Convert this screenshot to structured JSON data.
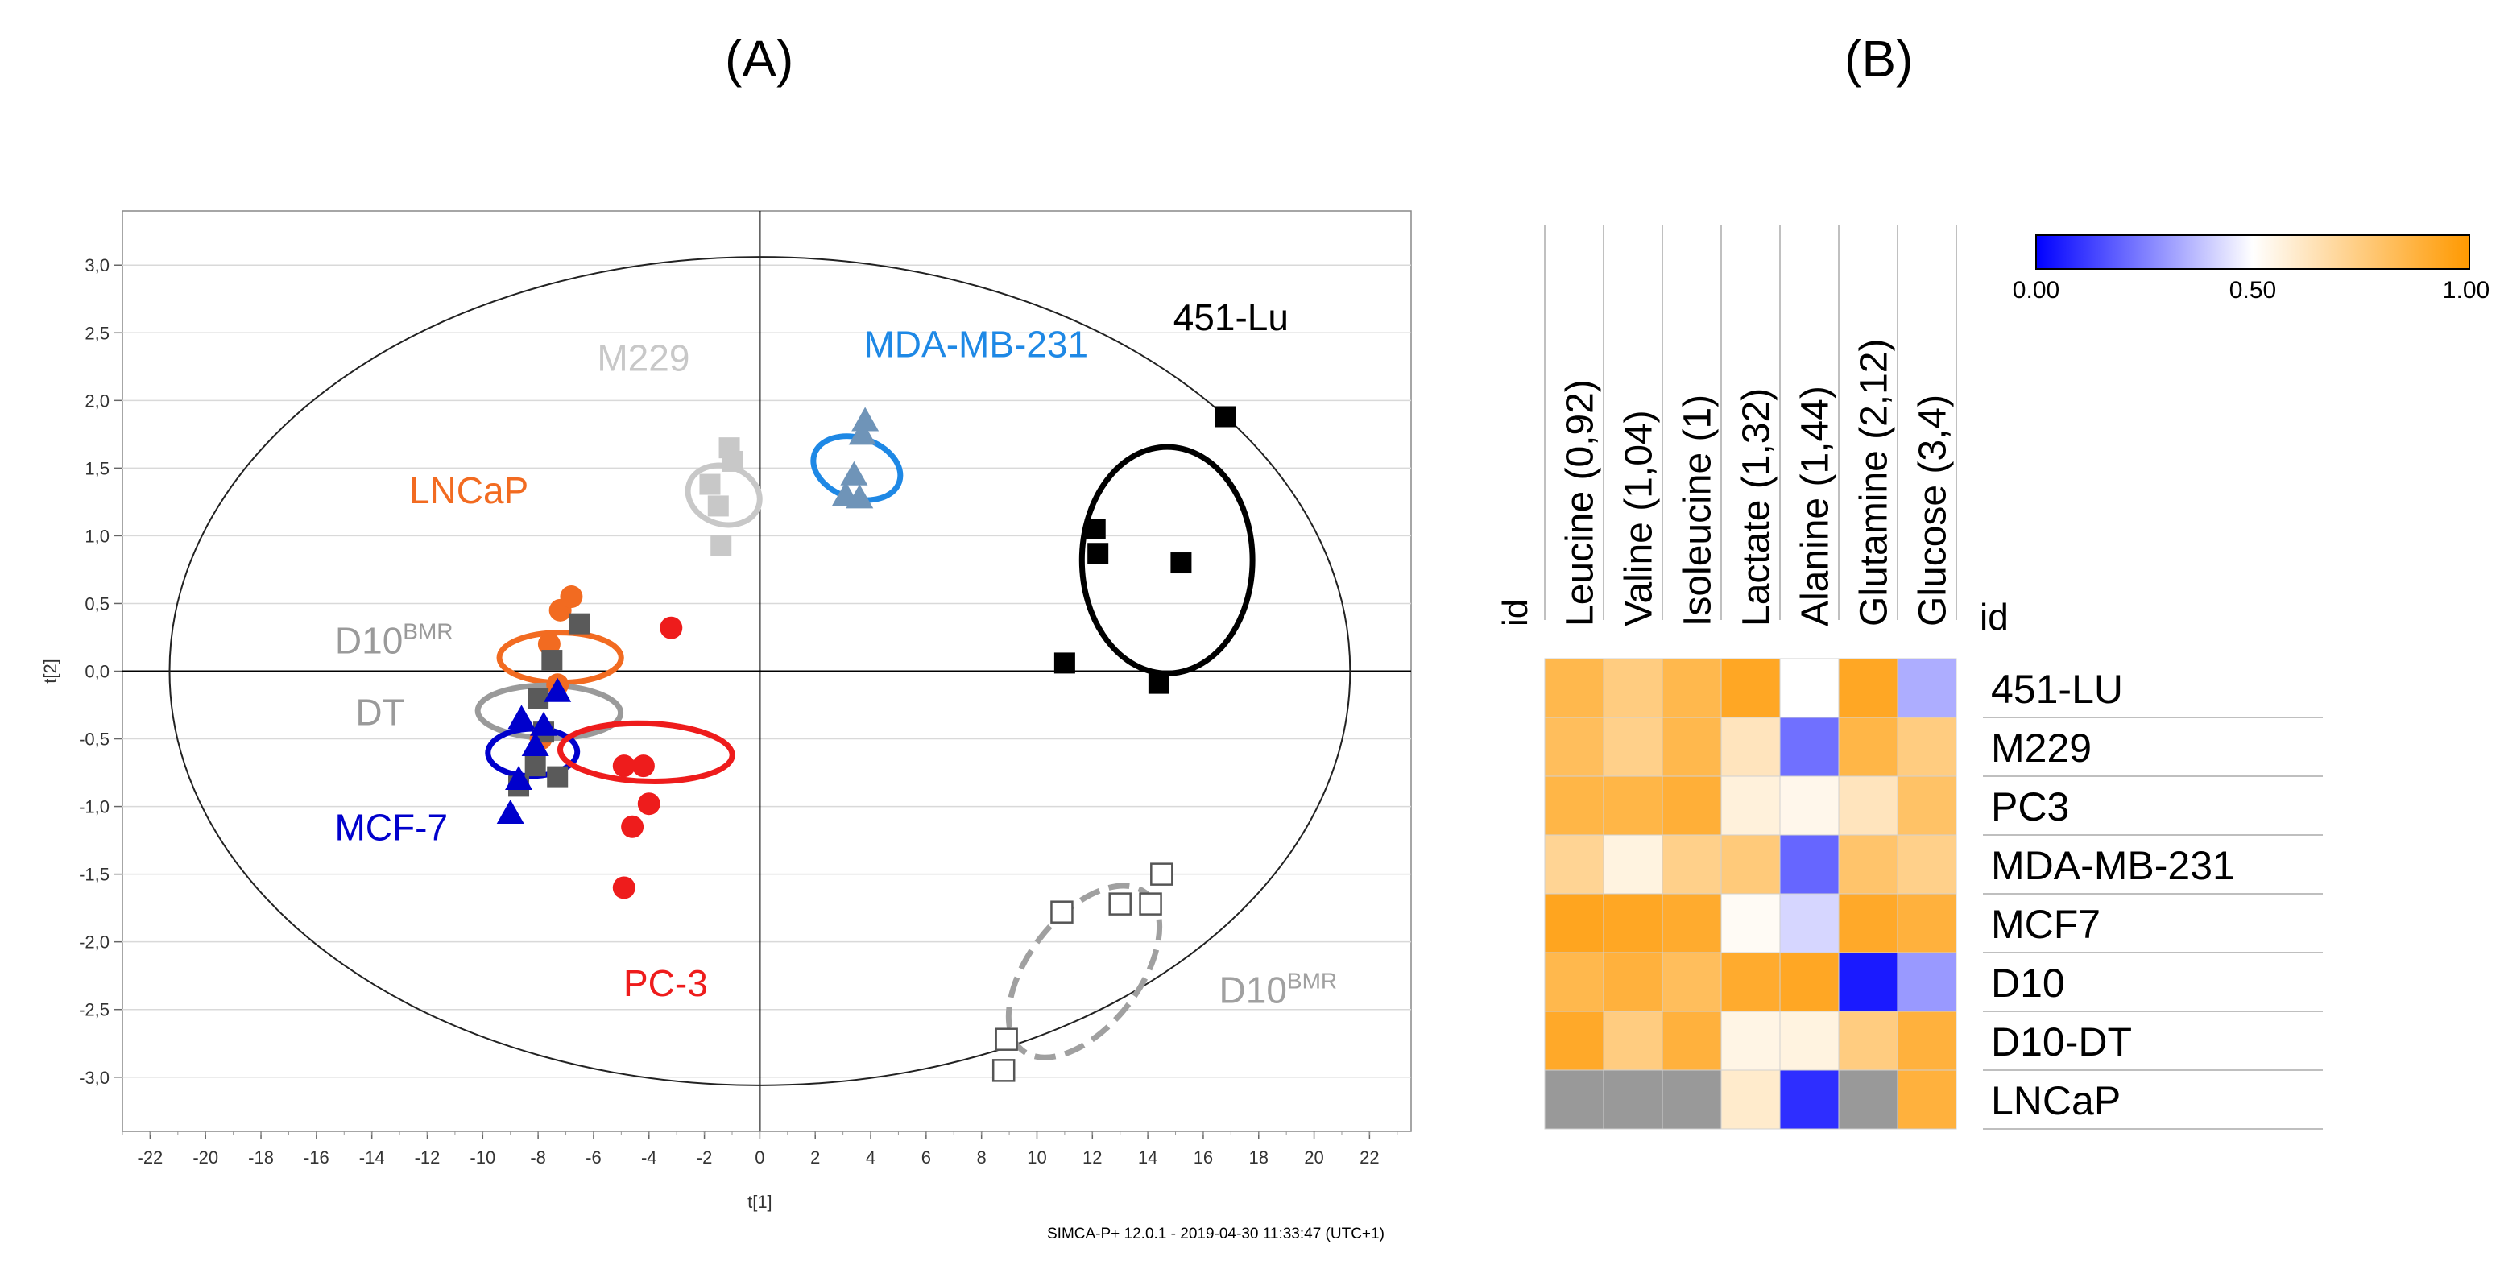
{
  "panel_labels": {
    "a": "(A)",
    "b": "(B)"
  },
  "footer": "SIMCA-P+ 12.0.1 - 2019-04-30 11:33:47 (UTC+1)",
  "colors": {
    "LNCaP": "#f26b21",
    "D10_DT": "#5a5a5a",
    "D10_DT_ellipse": "#9a9a9a",
    "MCF7": "#0000cc",
    "PC3": "#ee1c1c",
    "M229": "#c8c8c8",
    "MDA": "#6f94b8",
    "MDA_ellipse": "#1e88e5",
    "Lu451": "#000000",
    "D10_BMR": "#555555",
    "D10_BMR_ellipse": "#a0a0a0",
    "NA": "#999999"
  },
  "chart_data": [
    {
      "type": "scatter",
      "title": "",
      "xlabel": "t[1]",
      "ylabel": "t[2]",
      "xlim": [
        -23,
        23.5
      ],
      "ylim": [
        -3.4,
        3.4
      ],
      "xticks": [
        -22,
        -20,
        -18,
        -16,
        -14,
        -12,
        -10,
        -8,
        -6,
        -4,
        -2,
        0,
        2,
        4,
        6,
        8,
        10,
        12,
        14,
        16,
        18,
        20,
        22
      ],
      "yticks": [
        -3.0,
        -2.5,
        -2.0,
        -1.5,
        -1.0,
        -0.5,
        0.0,
        0.5,
        1.0,
        1.5,
        2.0,
        2.5,
        3.0
      ],
      "xtick_labels": [
        "-22",
        "-20",
        "-18",
        "-16",
        "-14",
        "-12",
        "-10",
        "-8",
        "-6",
        "-4",
        "-2",
        "0",
        "2",
        "4",
        "6",
        "8",
        "10",
        "12",
        "14",
        "16",
        "18",
        "20",
        "22"
      ],
      "ytick_labels": [
        "-3,0",
        "-2,5",
        "-2,0",
        "-1,5",
        "-1,0",
        "-0,5",
        "0,0",
        "0,5",
        "1,0",
        "1,5",
        "2,0",
        "2,5",
        "3,0"
      ],
      "grid": true,
      "hotelling_ellipse": {
        "cx": 0,
        "cy": 0,
        "rx": 21.3,
        "ry": 3.06
      },
      "series": [
        {
          "name": "LNCaP",
          "marker": "circle",
          "color": "LNCaP",
          "points": [
            [
              -7.2,
              0.45
            ],
            [
              -6.8,
              0.55
            ],
            [
              -7.6,
              0.2
            ],
            [
              -7.3,
              -0.1
            ],
            [
              -7.9,
              -0.5
            ]
          ]
        },
        {
          "name": "D10 BMR DT",
          "marker": "square",
          "color": "D10_DT",
          "points": [
            [
              -6.5,
              0.35
            ],
            [
              -7.5,
              0.08
            ],
            [
              -8.0,
              -0.2
            ],
            [
              -7.8,
              -0.45
            ],
            [
              -8.1,
              -0.7
            ],
            [
              -7.3,
              -0.78
            ],
            [
              -8.7,
              -0.85
            ]
          ]
        },
        {
          "name": "MCF-7",
          "marker": "triangle",
          "color": "MCF7",
          "points": [
            [
              -8.6,
              -0.35
            ],
            [
              -7.8,
              -0.4
            ],
            [
              -7.3,
              -0.15
            ],
            [
              -8.7,
              -0.8
            ],
            [
              -9.0,
              -1.05
            ],
            [
              -8.1,
              -0.55
            ]
          ]
        },
        {
          "name": "PC-3",
          "marker": "circle",
          "color": "PC3",
          "points": [
            [
              -3.2,
              0.32
            ],
            [
              -4.9,
              -0.7
            ],
            [
              -4.2,
              -0.7
            ],
            [
              -4.0,
              -0.98
            ],
            [
              -4.6,
              -1.15
            ],
            [
              -4.9,
              -1.6
            ]
          ]
        },
        {
          "name": "M229",
          "marker": "square",
          "color": "M229",
          "points": [
            [
              -1.1,
              1.65
            ],
            [
              -1.0,
              1.55
            ],
            [
              -1.8,
              1.38
            ],
            [
              -1.5,
              1.22
            ],
            [
              -1.4,
              0.93
            ]
          ]
        },
        {
          "name": "MDA-MB-231",
          "marker": "triangle",
          "color": "MDA",
          "points": [
            [
              3.8,
              1.85
            ],
            [
              3.7,
              1.75
            ],
            [
              3.4,
              1.45
            ],
            [
              3.1,
              1.3
            ],
            [
              3.6,
              1.28
            ]
          ]
        },
        {
          "name": "451-Lu",
          "marker": "square",
          "color": "Lu451",
          "points": [
            [
              16.8,
              1.88
            ],
            [
              12.1,
              1.05
            ],
            [
              12.2,
              0.87
            ],
            [
              15.2,
              0.8
            ],
            [
              11.0,
              0.06
            ],
            [
              14.4,
              -0.09
            ]
          ]
        },
        {
          "name": "D10 BMR",
          "marker": "open-square",
          "color": "D10_BMR",
          "points": [
            [
              14.5,
              -1.5
            ],
            [
              13.0,
              -1.72
            ],
            [
              14.1,
              -1.72
            ],
            [
              10.9,
              -1.78
            ],
            [
              8.9,
              -2.72
            ],
            [
              8.8,
              -2.95
            ]
          ]
        }
      ],
      "ellipses": [
        {
          "group": "LNCaP",
          "cx": -7.2,
          "cy": 0.1,
          "rx": 0.95,
          "ry": 0.75,
          "angle": -26,
          "stroke": "LNCaP",
          "dashed": false
        },
        {
          "group": "D10 BMR DT",
          "cx": -7.6,
          "cy": -0.3,
          "rx": 1.0,
          "ry": 0.88,
          "angle": -25,
          "stroke": "D10_DT_ellipse",
          "dashed": false
        },
        {
          "group": "MCF-7",
          "cx": -8.2,
          "cy": -0.6,
          "rx": 0.9,
          "ry": 0.55,
          "angle": -27,
          "stroke": "MCF7",
          "dashed": false
        },
        {
          "group": "PC-3",
          "cx": -4.1,
          "cy": -0.6,
          "rx": 1.1,
          "ry": 1.06,
          "angle": -24,
          "stroke": "PC3",
          "dashed": false
        },
        {
          "group": "M229",
          "cx": -1.3,
          "cy": 1.3,
          "rx": 1.1,
          "ry": 0.45,
          "angle": -8,
          "stroke": "M229",
          "dashed": false
        },
        {
          "group": "MDA-MB-231",
          "cx": 3.5,
          "cy": 1.5,
          "rx": 1.15,
          "ry": 0.55,
          "angle": -8,
          "stroke": "MDA_ellipse",
          "dashed": false
        },
        {
          "group": "451-Lu",
          "cx": 14.7,
          "cy": 0.82,
          "rx": 4.3,
          "ry": 1.05,
          "angle": -26,
          "stroke": "Lu451",
          "dashed": false
        },
        {
          "group": "D10 BMR",
          "cx": 11.7,
          "cy": -2.22,
          "rx": 3.8,
          "ry": 0.68,
          "angle": 12,
          "stroke": "D10_BMR_ellipse",
          "dashed": true
        }
      ],
      "annotations": [
        {
          "text": "M229",
          "x": -4.2,
          "y": 2.22,
          "color": "M229"
        },
        {
          "text": "MDA-MB-231",
          "x": 7.8,
          "y": 2.32,
          "color": "MDA_ellipse"
        },
        {
          "text": "451-Lu",
          "x": 17.0,
          "y": 2.52,
          "color": "Lu451"
        },
        {
          "text": "LNCaP",
          "x": -10.5,
          "y": 1.24,
          "color": "LNCaP"
        },
        {
          "text": "D10",
          "sup": "BMR",
          "x": -13.2,
          "y": 0.13,
          "color": "D10_DT_ellipse"
        },
        {
          "text": "DT",
          "x": -13.7,
          "y": -0.4,
          "color": "D10_DT_ellipse"
        },
        {
          "text": "MCF-7",
          "x": -13.3,
          "y": -1.25,
          "color": "MCF7"
        },
        {
          "text": "PC-3",
          "x": -3.4,
          "y": -2.4,
          "color": "PC3"
        },
        {
          "text": "D10",
          "sup": "BMR",
          "x": 18.7,
          "y": -2.45,
          "color": "D10_BMR_ellipse"
        }
      ]
    },
    {
      "type": "heatmap",
      "title": "",
      "row_header": "id",
      "col_header": "id",
      "columns": [
        "Leucine (0,92)",
        "Valine (1,04)",
        "Isoleucine (1)",
        "Lactate (1,32)",
        "Alanine (1,44)",
        "Glutamine (2,12)",
        "Glucose (3,4)"
      ],
      "rows": [
        "451-LU",
        "M229",
        "PC3",
        "MDA-MB-231",
        "MCF7",
        "D10",
        "D10-DT",
        "LNCaP"
      ],
      "values": [
        [
          0.85,
          0.75,
          0.85,
          0.93,
          0.5,
          0.93,
          0.34
        ],
        [
          0.82,
          0.73,
          0.85,
          0.63,
          0.22,
          0.86,
          0.75
        ],
        [
          0.86,
          0.86,
          0.89,
          0.57,
          0.54,
          0.63,
          0.8
        ],
        [
          0.71,
          0.56,
          0.73,
          0.76,
          0.2,
          0.79,
          0.73
        ],
        [
          0.94,
          0.93,
          0.91,
          0.52,
          0.42,
          0.92,
          0.88
        ],
        [
          0.85,
          0.88,
          0.82,
          0.91,
          0.93,
          0.05,
          0.3
        ],
        [
          0.92,
          0.75,
          0.88,
          0.55,
          0.56,
          0.75,
          0.88
        ],
        [
          null,
          null,
          null,
          0.6,
          0.09,
          null,
          0.88
        ]
      ],
      "colorbar": {
        "min_label": "0.00",
        "mid_label": "0.50",
        "max_label": "1.00",
        "min": 0,
        "max": 1,
        "colors": [
          "#0000ff",
          "#ffffff",
          "#ff9900"
        ]
      },
      "na_color": "NA"
    }
  ]
}
